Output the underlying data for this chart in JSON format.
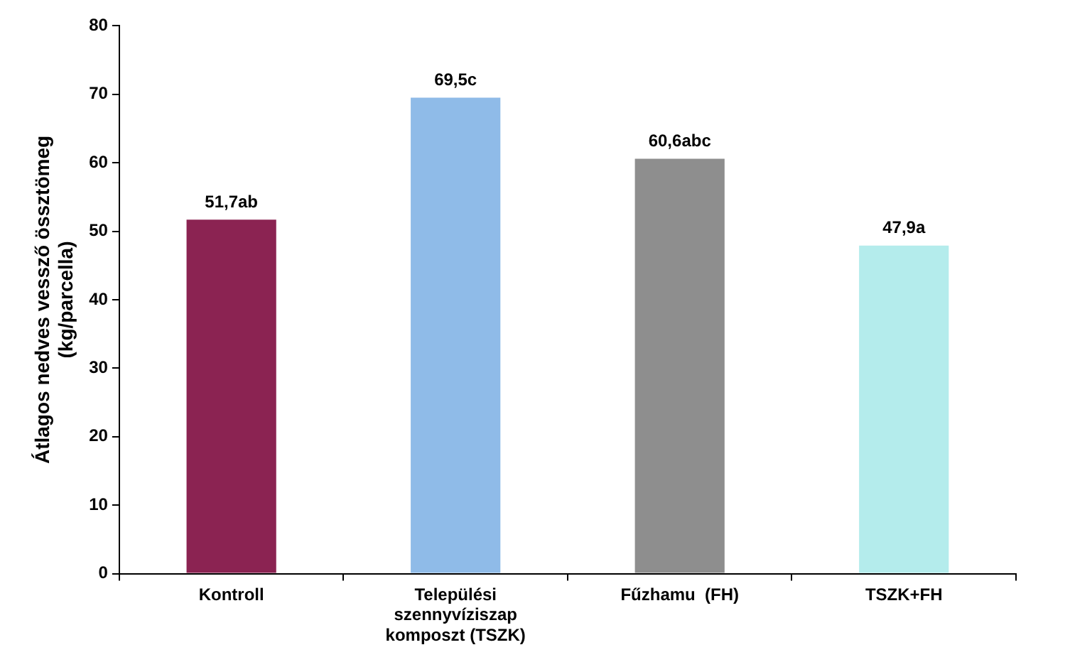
{
  "chart_data": {
    "type": "bar",
    "ylabel": "Átlagos nedves vessző össztömeg (kg/parcella)",
    "categories": [
      "Kontroll",
      "Települési szennyvíziszap komposzt (TSZK)",
      "Fűzhamu  (FH)",
      "TSZK+FH"
    ],
    "values": [
      51.7,
      69.5,
      60.6,
      47.9
    ],
    "colors": [
      "#8b2352",
      "#8fbbe8",
      "#8e8e8e",
      "#b4ecec"
    ],
    "value_labels": [
      "51,7ab",
      "69,5c",
      "60,6abc",
      "47,9a"
    ],
    "ylim": [
      0,
      80
    ],
    "yticks": [
      0,
      10,
      20,
      30,
      40,
      50,
      60,
      70,
      80
    ],
    "grid": false,
    "legend": false
  }
}
